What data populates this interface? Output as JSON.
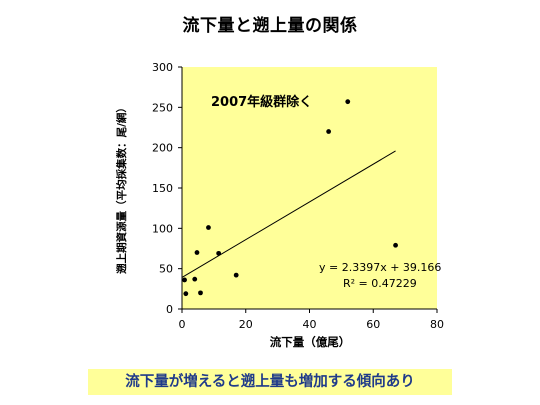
{
  "title": "流下量と遡上量の関係",
  "footer_text": "流下量が増えると遡上量も増加する傾向あり",
  "chart_data": {
    "type": "scatter",
    "annotation": "2007年級群除く",
    "xlabel": "流下量（億尾）",
    "ylabel": "遡上期資源量（平均採集数：尾/網）",
    "xlim": [
      0,
      80
    ],
    "ylim": [
      0,
      300
    ],
    "xticks": [
      0,
      20,
      40,
      60,
      80
    ],
    "yticks": [
      0,
      50,
      100,
      150,
      200,
      250,
      300
    ],
    "grid": false,
    "plot_background": "#ffff99",
    "points": [
      {
        "x": 0.8,
        "y": 36
      },
      {
        "x": 1.2,
        "y": 19
      },
      {
        "x": 4.0,
        "y": 37
      },
      {
        "x": 4.7,
        "y": 70
      },
      {
        "x": 5.8,
        "y": 20
      },
      {
        "x": 8.3,
        "y": 101
      },
      {
        "x": 11.5,
        "y": 69
      },
      {
        "x": 17.0,
        "y": 42
      },
      {
        "x": 46.0,
        "y": 220
      },
      {
        "x": 52.0,
        "y": 257
      },
      {
        "x": 67.0,
        "y": 79
      }
    ],
    "trendline": {
      "slope": 2.3397,
      "intercept": 39.166,
      "x_range": [
        0,
        67
      ]
    },
    "equation": "y = 2.3397x + 39.166",
    "r2_label": "R² = 0.47229"
  }
}
